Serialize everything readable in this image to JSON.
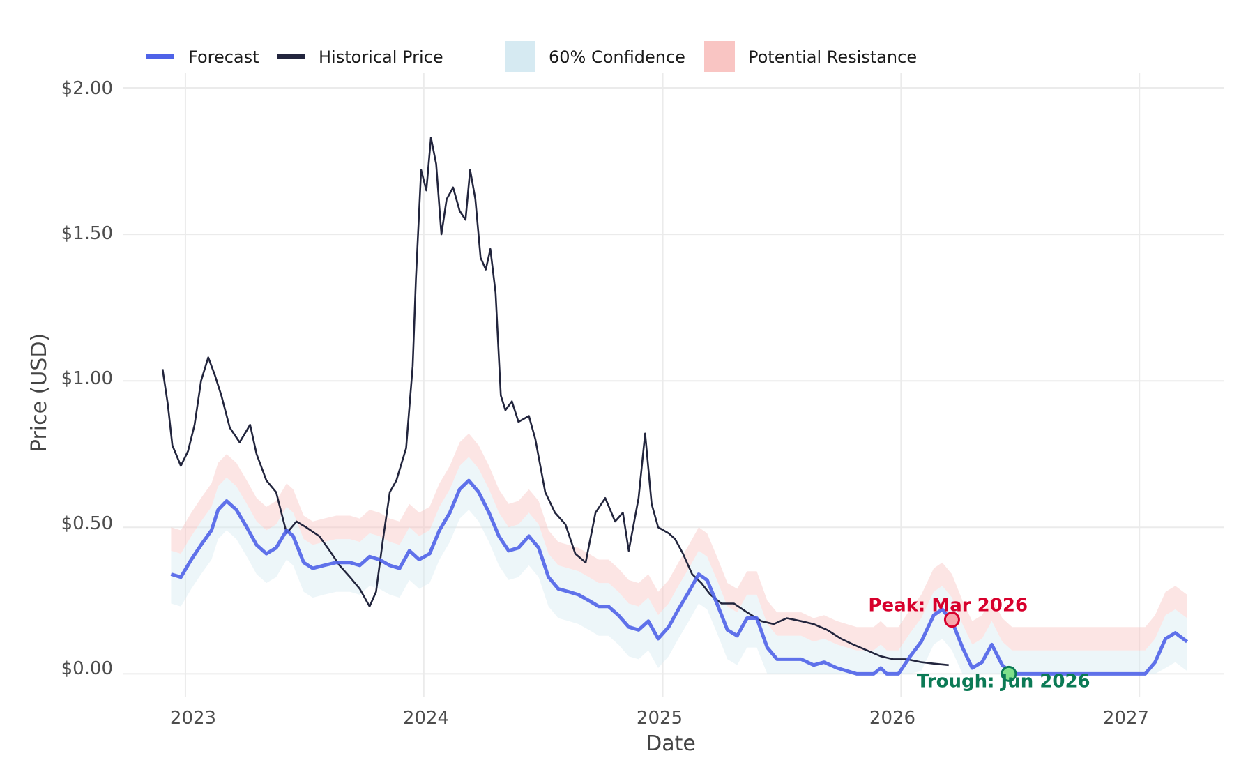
{
  "chart_data": {
    "type": "line",
    "xlabel": "Date",
    "ylabel": "Price (USD)",
    "x_ticks": [
      "2023",
      "2024",
      "2025",
      "2026",
      "2027"
    ],
    "y_ticks": [
      "$0.00",
      "$0.50",
      "$1.00",
      "$1.50",
      "$2.00"
    ],
    "xlim": [
      "2022-09-28",
      "2027-05-10"
    ],
    "ylim": [
      -0.08,
      2.05
    ],
    "grid": true,
    "legend_position": "top",
    "legend": {
      "forecast": "Forecast",
      "historical": "Historical Price",
      "confidence": "60% Confidence",
      "resistance": "Potential Resistance"
    },
    "colors": {
      "forecast": "#4f63e8",
      "historical": "#22253d",
      "confidence": "#d6eaf2",
      "resistance": "#f9c5c3",
      "peak": "#d7002c",
      "trough": "#0b7a55",
      "trough_fill": "#7ee08a",
      "grid": "#ebebeb"
    },
    "series": [
      {
        "name": "Historical Price",
        "points": [
          [
            "2022-11-27",
            1.04
          ],
          [
            "2022-12-05",
            0.92
          ],
          [
            "2022-12-12",
            0.78
          ],
          [
            "2022-12-25",
            0.71
          ],
          [
            "2023-01-05",
            0.76
          ],
          [
            "2023-01-15",
            0.85
          ],
          [
            "2023-01-25",
            1.0
          ],
          [
            "2023-02-05",
            1.08
          ],
          [
            "2023-02-15",
            1.02
          ],
          [
            "2023-02-25",
            0.95
          ],
          [
            "2023-03-10",
            0.84
          ],
          [
            "2023-03-25",
            0.79
          ],
          [
            "2023-04-10",
            0.85
          ],
          [
            "2023-04-20",
            0.75
          ],
          [
            "2023-05-05",
            0.66
          ],
          [
            "2023-05-20",
            0.62
          ],
          [
            "2023-06-05",
            0.48
          ],
          [
            "2023-06-20",
            0.52
          ],
          [
            "2023-07-05",
            0.5
          ],
          [
            "2023-07-25",
            0.47
          ],
          [
            "2023-08-10",
            0.42
          ],
          [
            "2023-08-25",
            0.37
          ],
          [
            "2023-09-10",
            0.33
          ],
          [
            "2023-09-25",
            0.29
          ],
          [
            "2023-10-10",
            0.23
          ],
          [
            "2023-10-20",
            0.28
          ],
          [
            "2023-10-30",
            0.45
          ],
          [
            "2023-11-10",
            0.62
          ],
          [
            "2023-11-20",
            0.66
          ],
          [
            "2023-12-05",
            0.77
          ],
          [
            "2023-12-15",
            1.05
          ],
          [
            "2023-12-20",
            1.35
          ],
          [
            "2023-12-28",
            1.72
          ],
          [
            "2024-01-05",
            1.65
          ],
          [
            "2024-01-12",
            1.83
          ],
          [
            "2024-01-20",
            1.74
          ],
          [
            "2024-01-28",
            1.5
          ],
          [
            "2024-02-05",
            1.62
          ],
          [
            "2024-02-15",
            1.66
          ],
          [
            "2024-02-25",
            1.58
          ],
          [
            "2024-03-05",
            1.55
          ],
          [
            "2024-03-12",
            1.72
          ],
          [
            "2024-03-20",
            1.62
          ],
          [
            "2024-03-28",
            1.42
          ],
          [
            "2024-04-05",
            1.38
          ],
          [
            "2024-04-12",
            1.45
          ],
          [
            "2024-04-20",
            1.3
          ],
          [
            "2024-04-28",
            0.95
          ],
          [
            "2024-05-05",
            0.9
          ],
          [
            "2024-05-15",
            0.93
          ],
          [
            "2024-05-25",
            0.86
          ],
          [
            "2024-06-10",
            0.88
          ],
          [
            "2024-06-20",
            0.8
          ],
          [
            "2024-07-05",
            0.62
          ],
          [
            "2024-07-20",
            0.55
          ],
          [
            "2024-08-05",
            0.51
          ],
          [
            "2024-08-20",
            0.41
          ],
          [
            "2024-09-05",
            0.38
          ],
          [
            "2024-09-20",
            0.55
          ],
          [
            "2024-10-05",
            0.6
          ],
          [
            "2024-10-20",
            0.52
          ],
          [
            "2024-11-01",
            0.55
          ],
          [
            "2024-11-10",
            0.42
          ],
          [
            "2024-11-25",
            0.6
          ],
          [
            "2024-12-05",
            0.82
          ],
          [
            "2024-12-15",
            0.58
          ],
          [
            "2024-12-25",
            0.5
          ],
          [
            "2025-01-10",
            0.48
          ],
          [
            "2025-01-20",
            0.46
          ],
          [
            "2025-02-01",
            0.41
          ],
          [
            "2025-02-15",
            0.34
          ],
          [
            "2025-03-01",
            0.31
          ],
          [
            "2025-03-15",
            0.27
          ],
          [
            "2025-04-01",
            0.24
          ],
          [
            "2025-04-20",
            0.24
          ],
          [
            "2025-05-10",
            0.21
          ],
          [
            "2025-06-01",
            0.18
          ],
          [
            "2025-06-20",
            0.17
          ],
          [
            "2025-07-10",
            0.19
          ],
          [
            "2025-08-01",
            0.18
          ],
          [
            "2025-08-20",
            0.17
          ],
          [
            "2025-09-10",
            0.15
          ],
          [
            "2025-10-01",
            0.12
          ],
          [
            "2025-10-20",
            0.1
          ],
          [
            "2025-11-10",
            0.08
          ],
          [
            "2025-12-01",
            0.06
          ],
          [
            "2025-12-20",
            0.05
          ],
          [
            "2026-01-10",
            0.05
          ],
          [
            "2026-02-01",
            0.04
          ],
          [
            "2026-02-20",
            0.035
          ],
          [
            "2026-03-15",
            0.03
          ]
        ]
      },
      {
        "name": "Forecast",
        "points": [
          [
            "2022-12-10",
            0.34
          ],
          [
            "2022-12-25",
            0.33
          ],
          [
            "2023-01-10",
            0.39
          ],
          [
            "2023-01-25",
            0.44
          ],
          [
            "2023-02-10",
            0.49
          ],
          [
            "2023-02-20",
            0.56
          ],
          [
            "2023-03-05",
            0.59
          ],
          [
            "2023-03-20",
            0.56
          ],
          [
            "2023-04-05",
            0.5
          ],
          [
            "2023-04-20",
            0.44
          ],
          [
            "2023-05-05",
            0.41
          ],
          [
            "2023-05-20",
            0.43
          ],
          [
            "2023-06-05",
            0.49
          ],
          [
            "2023-06-15",
            0.47
          ],
          [
            "2023-07-01",
            0.38
          ],
          [
            "2023-07-15",
            0.36
          ],
          [
            "2023-08-01",
            0.37
          ],
          [
            "2023-08-20",
            0.38
          ],
          [
            "2023-09-10",
            0.38
          ],
          [
            "2023-09-25",
            0.37
          ],
          [
            "2023-10-10",
            0.4
          ],
          [
            "2023-10-25",
            0.39
          ],
          [
            "2023-11-10",
            0.37
          ],
          [
            "2023-11-25",
            0.36
          ],
          [
            "2023-12-10",
            0.42
          ],
          [
            "2023-12-25",
            0.39
          ],
          [
            "2024-01-10",
            0.41
          ],
          [
            "2024-01-25",
            0.49
          ],
          [
            "2024-02-10",
            0.55
          ],
          [
            "2024-02-25",
            0.63
          ],
          [
            "2024-03-10",
            0.66
          ],
          [
            "2024-03-25",
            0.62
          ],
          [
            "2024-04-10",
            0.55
          ],
          [
            "2024-04-25",
            0.47
          ],
          [
            "2024-05-10",
            0.42
          ],
          [
            "2024-05-25",
            0.43
          ],
          [
            "2024-06-10",
            0.47
          ],
          [
            "2024-06-25",
            0.43
          ],
          [
            "2024-07-10",
            0.33
          ],
          [
            "2024-07-25",
            0.29
          ],
          [
            "2024-08-10",
            0.28
          ],
          [
            "2024-08-25",
            0.27
          ],
          [
            "2024-09-10",
            0.25
          ],
          [
            "2024-09-25",
            0.23
          ],
          [
            "2024-10-10",
            0.23
          ],
          [
            "2024-10-25",
            0.2
          ],
          [
            "2024-11-10",
            0.16
          ],
          [
            "2024-11-25",
            0.15
          ],
          [
            "2024-12-10",
            0.18
          ],
          [
            "2024-12-25",
            0.12
          ],
          [
            "2025-01-10",
            0.16
          ],
          [
            "2025-01-25",
            0.22
          ],
          [
            "2025-02-10",
            0.28
          ],
          [
            "2025-02-25",
            0.34
          ],
          [
            "2025-03-10",
            0.32
          ],
          [
            "2025-03-25",
            0.24
          ],
          [
            "2025-04-10",
            0.15
          ],
          [
            "2025-04-25",
            0.13
          ],
          [
            "2025-05-10",
            0.19
          ],
          [
            "2025-05-25",
            0.19
          ],
          [
            "2025-06-10",
            0.09
          ],
          [
            "2025-06-25",
            0.05
          ],
          [
            "2025-07-10",
            0.05
          ],
          [
            "2025-08-01",
            0.05
          ],
          [
            "2025-08-20",
            0.03
          ],
          [
            "2025-09-05",
            0.04
          ],
          [
            "2025-09-25",
            0.02
          ],
          [
            "2025-10-10",
            0.01
          ],
          [
            "2025-10-25",
            0.0
          ],
          [
            "2025-11-20",
            0.0
          ],
          [
            "2025-12-01",
            0.02
          ],
          [
            "2025-12-10",
            0.0
          ],
          [
            "2025-12-28",
            0.0
          ],
          [
            "2026-01-15",
            0.06
          ],
          [
            "2026-02-01",
            0.11
          ],
          [
            "2026-02-20",
            0.2
          ],
          [
            "2026-03-05",
            0.22
          ],
          [
            "2026-03-20",
            0.18
          ],
          [
            "2026-04-05",
            0.09
          ],
          [
            "2026-04-20",
            0.02
          ],
          [
            "2026-05-05",
            0.04
          ],
          [
            "2026-05-20",
            0.1
          ],
          [
            "2026-06-05",
            0.03
          ],
          [
            "2026-06-20",
            0.0
          ],
          [
            "2027-01-10",
            0.0
          ],
          [
            "2027-01-25",
            0.04
          ],
          [
            "2027-02-10",
            0.12
          ],
          [
            "2027-02-25",
            0.14
          ],
          [
            "2027-03-15",
            0.11
          ]
        ]
      }
    ],
    "band_lower_offset": 0.1,
    "confidence_upper_offset": 0.08,
    "resistance_upper_offset": 0.16,
    "annotations": [
      {
        "id": "peak",
        "label": "Peak: Mar 2026",
        "x": "2026-03-20",
        "y": 0.185
      },
      {
        "id": "trough",
        "label": "Trough: Jun 2026",
        "x": "2026-06-15",
        "y": 0.0
      }
    ]
  }
}
